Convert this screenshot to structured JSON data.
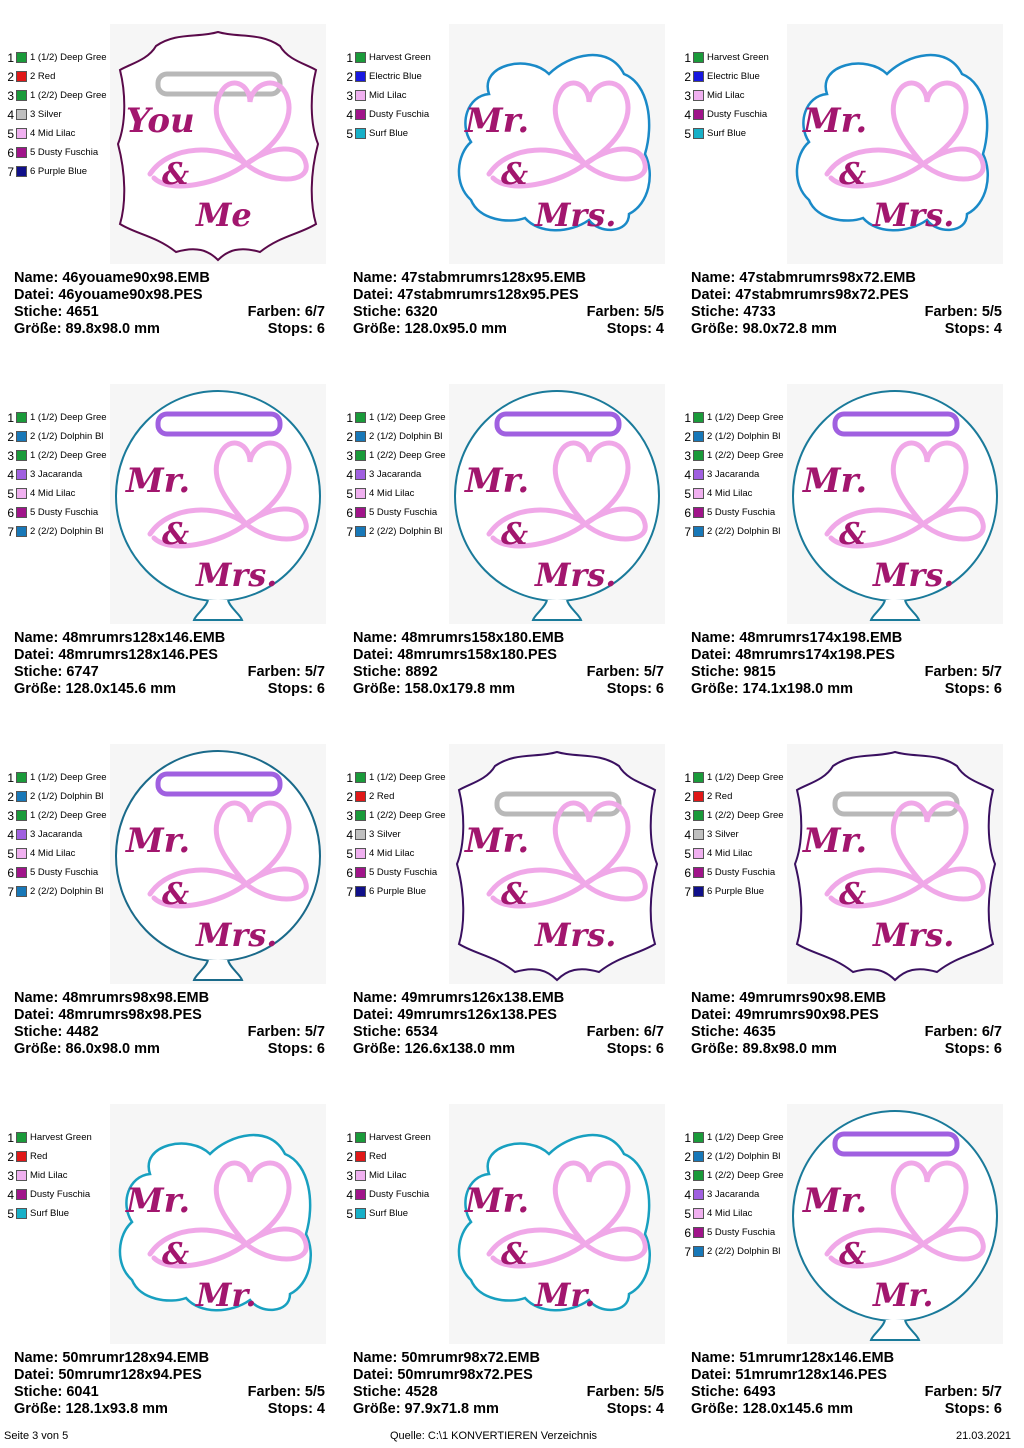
{
  "labels": {
    "name": "Name:",
    "datei": "Datei:",
    "stiche": "Stiche:",
    "farben": "Farben:",
    "groesse": "Größe:",
    "stops": "Stops:"
  },
  "designs": [
    {
      "shape": "plaque",
      "loop": "#b8b8b8",
      "outline": "#5a0a4a",
      "text1": "You",
      "text2": "&",
      "text3": "Me",
      "textColor": "#a2166e",
      "heart": "#f0a8e8",
      "colors": [
        {
          "num": "1",
          "name": "1 (1/2) Deep Gree",
          "hex": "#1a9a3a"
        },
        {
          "num": "2",
          "name": "2 Red",
          "hex": "#e01818"
        },
        {
          "num": "3",
          "name": "1 (2/2) Deep Gree",
          "hex": "#1a9a3a"
        },
        {
          "num": "4",
          "name": "3 Silver",
          "hex": "#c0c0c0"
        },
        {
          "num": "5",
          "name": "4 Mid Lilac",
          "hex": "#f0b0f0"
        },
        {
          "num": "6",
          "name": "5 Dusty Fuschia",
          "hex": "#a0148a"
        },
        {
          "num": "7",
          "name": "6 Purple Blue",
          "hex": "#10108a"
        }
      ],
      "name": "46youame90x98.EMB",
      "datei": "46youame90x98.PES",
      "stiche": "4651",
      "farben": "6/7",
      "groesse": "89.8x98.0 mm",
      "stops": "6"
    },
    {
      "shape": "cloud",
      "loop": "",
      "outline": "#1a8ac8",
      "text1": "Mr.",
      "text2": "&",
      "text3": "Mrs.",
      "textColor": "#a2166e",
      "heart": "#f0a8e8",
      "colors": [
        {
          "num": "1",
          "name": "Harvest Green",
          "hex": "#1a9a3a"
        },
        {
          "num": "2",
          "name": "Electric Blue",
          "hex": "#1818e0"
        },
        {
          "num": "3",
          "name": "Mid Lilac",
          "hex": "#f0b0f0"
        },
        {
          "num": "4",
          "name": "Dusty Fuschia",
          "hex": "#a0148a"
        },
        {
          "num": "5",
          "name": "Surf Blue",
          "hex": "#18b0c8"
        }
      ],
      "name": "47stabmrumrs128x95.EMB",
      "datei": "47stabmrumrs128x95.PES",
      "stiche": "6320",
      "farben": "5/5",
      "groesse": "128.0x95.0 mm",
      "stops": "4"
    },
    {
      "shape": "cloud",
      "loop": "",
      "outline": "#1a8ac8",
      "text1": "Mr.",
      "text2": "&",
      "text3": "Mrs.",
      "textColor": "#a2166e",
      "heart": "#f0a8e8",
      "colors": [
        {
          "num": "1",
          "name": "Harvest Green",
          "hex": "#1a9a3a"
        },
        {
          "num": "2",
          "name": "Electric Blue",
          "hex": "#1818e0"
        },
        {
          "num": "3",
          "name": "Mid Lilac",
          "hex": "#f0b0f0"
        },
        {
          "num": "4",
          "name": "Dusty Fuschia",
          "hex": "#a0148a"
        },
        {
          "num": "5",
          "name": "Surf Blue",
          "hex": "#18b0c8"
        }
      ],
      "name": "47stabmrumrs98x72.EMB",
      "datei": "47stabmrumrs98x72.PES",
      "stiche": "4733",
      "farben": "5/5",
      "groesse": "98.0x72.8 mm",
      "stops": "4"
    },
    {
      "shape": "balloon",
      "loop": "#a060e0",
      "outline": "#1a7a9a",
      "text1": "Mr.",
      "text2": "&",
      "text3": "Mrs.",
      "textColor": "#a2166e",
      "heart": "#f0a8e8",
      "colors": [
        {
          "num": "1",
          "name": "1 (1/2) Deep Gree",
          "hex": "#1a9a3a"
        },
        {
          "num": "2",
          "name": "2 (1/2) Dolphin Bl",
          "hex": "#1878b8"
        },
        {
          "num": "3",
          "name": "1 (2/2) Deep Gree",
          "hex": "#1a9a3a"
        },
        {
          "num": "4",
          "name": "3 Jacaranda",
          "hex": "#a060e0"
        },
        {
          "num": "5",
          "name": "4 Mid Lilac",
          "hex": "#f0b0f0"
        },
        {
          "num": "6",
          "name": "5 Dusty Fuschia",
          "hex": "#a0148a"
        },
        {
          "num": "7",
          "name": "2 (2/2) Dolphin Bl",
          "hex": "#1878b8"
        }
      ],
      "name": "48mrumrs128x146.EMB",
      "datei": "48mrumrs128x146.PES",
      "stiche": "6747",
      "farben": "5/7",
      "groesse": "128.0x145.6 mm",
      "stops": "6"
    },
    {
      "shape": "balloon",
      "loop": "#a060e0",
      "outline": "#1a7a9a",
      "text1": "Mr.",
      "text2": "&",
      "text3": "Mrs.",
      "textColor": "#a2166e",
      "heart": "#f0a8e8",
      "colors": [
        {
          "num": "1",
          "name": "1 (1/2) Deep Gree",
          "hex": "#1a9a3a"
        },
        {
          "num": "2",
          "name": "2 (1/2) Dolphin Bl",
          "hex": "#1878b8"
        },
        {
          "num": "3",
          "name": "1 (2/2) Deep Gree",
          "hex": "#1a9a3a"
        },
        {
          "num": "4",
          "name": "3 Jacaranda",
          "hex": "#a060e0"
        },
        {
          "num": "5",
          "name": "4 Mid Lilac",
          "hex": "#f0b0f0"
        },
        {
          "num": "6",
          "name": "5 Dusty Fuschia",
          "hex": "#a0148a"
        },
        {
          "num": "7",
          "name": "2 (2/2) Dolphin Bl",
          "hex": "#1878b8"
        }
      ],
      "name": "48mrumrs158x180.EMB",
      "datei": "48mrumrs158x180.PES",
      "stiche": "8892",
      "farben": "5/7",
      "groesse": "158.0x179.8 mm",
      "stops": "6"
    },
    {
      "shape": "balloon",
      "loop": "#a060e0",
      "outline": "#1a7a9a",
      "text1": "Mr.",
      "text2": "&",
      "text3": "Mrs.",
      "textColor": "#a2166e",
      "heart": "#f0a8e8",
      "colors": [
        {
          "num": "1",
          "name": "1 (1/2) Deep Gree",
          "hex": "#1a9a3a"
        },
        {
          "num": "2",
          "name": "2 (1/2) Dolphin Bl",
          "hex": "#1878b8"
        },
        {
          "num": "3",
          "name": "1 (2/2) Deep Gree",
          "hex": "#1a9a3a"
        },
        {
          "num": "4",
          "name": "3 Jacaranda",
          "hex": "#a060e0"
        },
        {
          "num": "5",
          "name": "4 Mid Lilac",
          "hex": "#f0b0f0"
        },
        {
          "num": "6",
          "name": "5 Dusty Fuschia",
          "hex": "#a0148a"
        },
        {
          "num": "7",
          "name": "2 (2/2) Dolphin Bl",
          "hex": "#1878b8"
        }
      ],
      "name": "48mrumrs174x198.EMB",
      "datei": "48mrumrs174x198.PES",
      "stiche": "9815",
      "farben": "5/7",
      "groesse": "174.1x198.0 mm",
      "stops": "6"
    },
    {
      "shape": "balloon",
      "loop": "#a060e0",
      "outline": "#1a6a8a",
      "text1": "Mr.",
      "text2": "&",
      "text3": "Mrs.",
      "textColor": "#a2166e",
      "heart": "#f0a8e8",
      "colors": [
        {
          "num": "1",
          "name": "1 (1/2) Deep Gree",
          "hex": "#1a9a3a"
        },
        {
          "num": "2",
          "name": "2 (1/2) Dolphin Bl",
          "hex": "#1878b8"
        },
        {
          "num": "3",
          "name": "1 (2/2) Deep Gree",
          "hex": "#1a9a3a"
        },
        {
          "num": "4",
          "name": "3 Jacaranda",
          "hex": "#a060e0"
        },
        {
          "num": "5",
          "name": "4 Mid Lilac",
          "hex": "#f0b0f0"
        },
        {
          "num": "6",
          "name": "5 Dusty Fuschia",
          "hex": "#a0148a"
        },
        {
          "num": "7",
          "name": "2 (2/2) Dolphin Bl",
          "hex": "#1878b8"
        }
      ],
      "name": "48mrumrs98x98.EMB",
      "datei": "48mrumrs98x98.PES",
      "stiche": "4482",
      "farben": "5/7",
      "groesse": "86.0x98.0 mm",
      "stops": "6"
    },
    {
      "shape": "plaque",
      "loop": "#b8b8b8",
      "outline": "#3a1060",
      "text1": "Mr.",
      "text2": "&",
      "text3": "Mrs.",
      "textColor": "#a2166e",
      "heart": "#f0a8e8",
      "colors": [
        {
          "num": "1",
          "name": "1 (1/2) Deep Gree",
          "hex": "#1a9a3a"
        },
        {
          "num": "2",
          "name": "2 Red",
          "hex": "#e01818"
        },
        {
          "num": "3",
          "name": "1 (2/2) Deep Gree",
          "hex": "#1a9a3a"
        },
        {
          "num": "4",
          "name": "3 Silver",
          "hex": "#c0c0c0"
        },
        {
          "num": "5",
          "name": "4 Mid Lilac",
          "hex": "#f0b0f0"
        },
        {
          "num": "6",
          "name": "5 Dusty Fuschia",
          "hex": "#a0148a"
        },
        {
          "num": "7",
          "name": "6 Purple Blue",
          "hex": "#10108a"
        }
      ],
      "name": "49mrumrs126x138.EMB",
      "datei": "49mrumrs126x138.PES",
      "stiche": "6534",
      "farben": "6/7",
      "groesse": "126.6x138.0 mm",
      "stops": "6"
    },
    {
      "shape": "plaque",
      "loop": "#b8b8b8",
      "outline": "#3a1060",
      "text1": "Mr.",
      "text2": "&",
      "text3": "Mrs.",
      "textColor": "#a2166e",
      "heart": "#f0a8e8",
      "colors": [
        {
          "num": "1",
          "name": "1 (1/2) Deep Gree",
          "hex": "#1a9a3a"
        },
        {
          "num": "2",
          "name": "2 Red",
          "hex": "#e01818"
        },
        {
          "num": "3",
          "name": "1 (2/2) Deep Gree",
          "hex": "#1a9a3a"
        },
        {
          "num": "4",
          "name": "3 Silver",
          "hex": "#c0c0c0"
        },
        {
          "num": "5",
          "name": "4 Mid Lilac",
          "hex": "#f0b0f0"
        },
        {
          "num": "6",
          "name": "5 Dusty Fuschia",
          "hex": "#a0148a"
        },
        {
          "num": "7",
          "name": "6 Purple Blue",
          "hex": "#10108a"
        }
      ],
      "name": "49mrumrs90x98.EMB",
      "datei": "49mrumrs90x98.PES",
      "stiche": "4635",
      "farben": "6/7",
      "groesse": "89.8x98.0 mm",
      "stops": "6"
    },
    {
      "shape": "cloud",
      "loop": "",
      "outline": "#18a0c0",
      "text1": "Mr.",
      "text2": "&",
      "text3": "Mr.",
      "textColor": "#a2166e",
      "heart": "#f0a8e8",
      "colors": [
        {
          "num": "1",
          "name": "Harvest Green",
          "hex": "#1a9a3a"
        },
        {
          "num": "2",
          "name": "Red",
          "hex": "#e01818"
        },
        {
          "num": "3",
          "name": "Mid Lilac",
          "hex": "#f0b0f0"
        },
        {
          "num": "4",
          "name": "Dusty Fuschia",
          "hex": "#a0148a"
        },
        {
          "num": "5",
          "name": "Surf Blue",
          "hex": "#18b0c8"
        }
      ],
      "name": "50mrumr128x94.EMB",
      "datei": "50mrumr128x94.PES",
      "stiche": "6041",
      "farben": "5/5",
      "groesse": "128.1x93.8 mm",
      "stops": "4"
    },
    {
      "shape": "cloud",
      "loop": "",
      "outline": "#18a0c0",
      "text1": "Mr.",
      "text2": "&",
      "text3": "Mr.",
      "textColor": "#a2166e",
      "heart": "#f0a8e8",
      "colors": [
        {
          "num": "1",
          "name": "Harvest Green",
          "hex": "#1a9a3a"
        },
        {
          "num": "2",
          "name": "Red",
          "hex": "#e01818"
        },
        {
          "num": "3",
          "name": "Mid Lilac",
          "hex": "#f0b0f0"
        },
        {
          "num": "4",
          "name": "Dusty Fuschia",
          "hex": "#a0148a"
        },
        {
          "num": "5",
          "name": "Surf Blue",
          "hex": "#18b0c8"
        }
      ],
      "name": "50mrumr98x72.EMB",
      "datei": "50mrumr98x72.PES",
      "stiche": "4528",
      "farben": "5/5",
      "groesse": "97.9x71.8 mm",
      "stops": "4"
    },
    {
      "shape": "balloon",
      "loop": "#a060e0",
      "outline": "#1a7a9a",
      "text1": "Mr.",
      "text2": "&",
      "text3": "Mr.",
      "textColor": "#a2166e",
      "heart": "#f0a8e8",
      "colors": [
        {
          "num": "1",
          "name": "1 (1/2) Deep Gree",
          "hex": "#1a9a3a"
        },
        {
          "num": "2",
          "name": "2 (1/2) Dolphin Bl",
          "hex": "#1878b8"
        },
        {
          "num": "3",
          "name": "1 (2/2) Deep Gree",
          "hex": "#1a9a3a"
        },
        {
          "num": "4",
          "name": "3 Jacaranda",
          "hex": "#a060e0"
        },
        {
          "num": "5",
          "name": "4 Mid Lilac",
          "hex": "#f0b0f0"
        },
        {
          "num": "6",
          "name": "5 Dusty Fuschia",
          "hex": "#a0148a"
        },
        {
          "num": "7",
          "name": "2 (2/2) Dolphin Bl",
          "hex": "#1878b8"
        }
      ],
      "name": "51mrumr128x146.EMB",
      "datei": "51mrumr128x146.PES",
      "stiche": "6493",
      "farben": "5/7",
      "groesse": "128.0x145.6 mm",
      "stops": "6"
    }
  ],
  "footer": {
    "page": "Seite 3 von 5",
    "source": "Quelle: C:\\1 KONVERTIEREN Verzeichnis",
    "date": "21.03.2021"
  }
}
